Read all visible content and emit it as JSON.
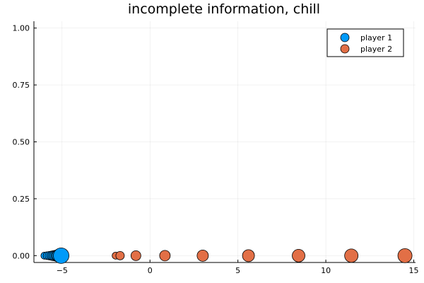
{
  "chart_data": {
    "type": "scatter",
    "title": "incomplete information, chill",
    "xlabel": "",
    "ylabel": "",
    "xlim": [
      -6.6,
      15.1
    ],
    "ylim": [
      -0.03,
      1.03
    ],
    "xticks": [
      -5,
      0,
      5,
      10,
      15
    ],
    "xtick_labels": [
      "−5",
      "0",
      "5",
      "10",
      "15"
    ],
    "yticks": [
      0.0,
      0.25,
      0.5,
      0.75,
      1.0
    ],
    "ytick_labels": [
      "0.00",
      "0.25",
      "0.50",
      "0.75",
      "1.00"
    ],
    "grid": true,
    "legend_position": "top-right",
    "series": [
      {
        "name": "player 1",
        "color": "#009af9",
        "points": [
          {
            "x": -6.0,
            "y": 0.0,
            "r": 5
          },
          {
            "x": -5.85,
            "y": 0.0,
            "r": 5.5
          },
          {
            "x": -5.72,
            "y": 0.0,
            "r": 6
          },
          {
            "x": -5.6,
            "y": 0.0,
            "r": 6.5
          },
          {
            "x": -5.5,
            "y": 0.0,
            "r": 7
          },
          {
            "x": -5.4,
            "y": 0.0,
            "r": 7.5
          },
          {
            "x": -5.3,
            "y": 0.0,
            "r": 8
          },
          {
            "x": -5.2,
            "y": 0.0,
            "r": 9
          },
          {
            "x": -5.05,
            "y": 0.0,
            "r": 11
          }
        ]
      },
      {
        "name": "player 2",
        "color": "#e26f46",
        "points": [
          {
            "x": -1.95,
            "y": 0.0,
            "r": 5
          },
          {
            "x": -1.7,
            "y": 0.0,
            "r": 6
          },
          {
            "x": -0.8,
            "y": 0.0,
            "r": 7
          },
          {
            "x": 0.85,
            "y": 0.0,
            "r": 7.5
          },
          {
            "x": 3.0,
            "y": 0.0,
            "r": 8
          },
          {
            "x": 5.6,
            "y": 0.0,
            "r": 8.5
          },
          {
            "x": 8.45,
            "y": 0.0,
            "r": 9
          },
          {
            "x": 11.45,
            "y": 0.0,
            "r": 9.5
          },
          {
            "x": 14.5,
            "y": 0.0,
            "r": 10
          }
        ]
      }
    ]
  }
}
